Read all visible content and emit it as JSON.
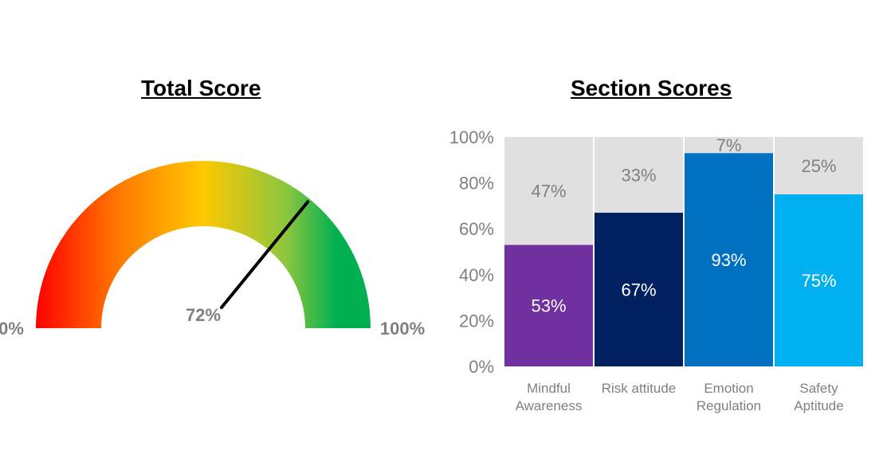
{
  "gauge": {
    "title": "Total Score",
    "value": 72,
    "value_label": "72%",
    "min_label": "0%",
    "max_label": "100%",
    "colors": [
      "#ff0000",
      "#ff7a00",
      "#ffc800",
      "#8cc63f",
      "#00b050"
    ]
  },
  "chart_data": {
    "type": "bar",
    "title": "Section Scores",
    "stacked": true,
    "categories": [
      [
        "Mindful",
        "Awareness"
      ],
      [
        "Risk attitude"
      ],
      [
        "Emotion",
        "Regulation"
      ],
      [
        "Safety",
        "Aptitude"
      ]
    ],
    "ylim": [
      0,
      100
    ],
    "yticks": [
      "0%",
      "20%",
      "40%",
      "60%",
      "80%",
      "100%"
    ],
    "series": [
      {
        "values": [
          53,
          67,
          93,
          75
        ],
        "labels": [
          "53%",
          "67%",
          "93%",
          "75%"
        ],
        "colors": [
          "#7030a0",
          "#002060",
          "#0070c0",
          "#00b0f0"
        ],
        "label_color": "#ffffff"
      },
      {
        "values": [
          47,
          33,
          7,
          25
        ],
        "labels": [
          "47%",
          "33%",
          "7%",
          "25%"
        ],
        "colors": [
          "#e0e0e0",
          "#e0e0e0",
          "#e0e0e0",
          "#e0e0e0"
        ],
        "label_color": "#808080"
      }
    ]
  }
}
